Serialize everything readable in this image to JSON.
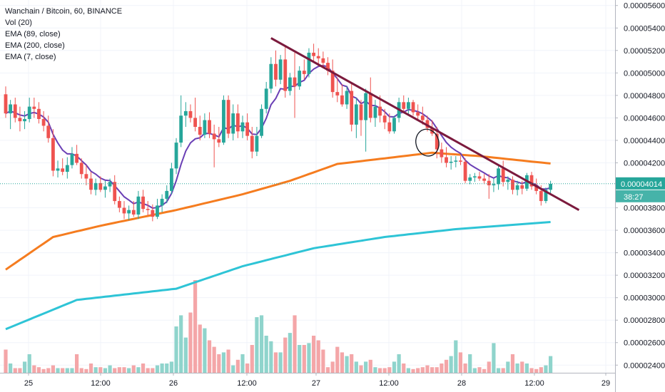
{
  "legend": {
    "title": "Wanchain / Bitcoin, 60, BINANCE",
    "vol": "Vol (20)",
    "ema1": "EMA (89, close)",
    "ema2": "EMA (200, close)",
    "ema3": "EMA (7, close)"
  },
  "colors": {
    "up": "#26a69a",
    "down": "#ef5350",
    "vol_up": "#8fd4cc",
    "vol_down": "#f4a6a8",
    "ema7": "#6a3fb5",
    "ema89": "#f57c1f",
    "ema200": "#2ec4d6",
    "trendline": "#7b1a3d",
    "last_price": "#26a69a"
  },
  "chart_data": {
    "type": "candlestick",
    "title": "Wanchain / Bitcoin, 60, BINANCE",
    "y_axis": {
      "ticks": [
        "0.00005600",
        "0.00005400",
        "0.00005200",
        "0.00005000",
        "0.00004800",
        "0.00004600",
        "0.00004400",
        "0.00004200",
        "0.00003800",
        "0.00003600",
        "0.00003400",
        "0.00003200",
        "0.00003000",
        "0.00002800",
        "0.00002600",
        "0.00002400"
      ],
      "range": [
        2.37e-05,
        5.63e-05
      ]
    },
    "x_axis": {
      "ticks": [
        "25",
        "12:00",
        "26",
        "12:00",
        "27",
        "12:00",
        "28",
        "12:00",
        "29"
      ]
    },
    "last_price": {
      "label": "0.00004014",
      "value": 4.014e-05,
      "countdown": "38:27"
    },
    "candles": [
      {
        "o": 4.81e-05,
        "h": 4.88e-05,
        "l": 4.6e-05,
        "c": 4.64e-05
      },
      {
        "o": 4.64e-05,
        "h": 4.76e-05,
        "l": 4.5e-05,
        "c": 4.72e-05
      },
      {
        "o": 4.72e-05,
        "h": 4.78e-05,
        "l": 4.56e-05,
        "c": 4.6e-05
      },
      {
        "o": 4.6e-05,
        "h": 4.7e-05,
        "l": 4.48e-05,
        "c": 4.57e-05
      },
      {
        "o": 4.57e-05,
        "h": 4.66e-05,
        "l": 4.5e-05,
        "c": 4.59e-05
      },
      {
        "o": 4.59e-05,
        "h": 4.78e-05,
        "l": 4.56e-05,
        "c": 4.7e-05
      },
      {
        "o": 4.7e-05,
        "h": 4.78e-05,
        "l": 4.6e-05,
        "c": 4.68e-05
      },
      {
        "o": 4.68e-05,
        "h": 4.74e-05,
        "l": 4.55e-05,
        "c": 4.59e-05
      },
      {
        "o": 4.59e-05,
        "h": 4.66e-05,
        "l": 4.48e-05,
        "c": 4.53e-05
      },
      {
        "o": 4.53e-05,
        "h": 4.62e-05,
        "l": 4.38e-05,
        "c": 4.42e-05
      },
      {
        "o": 4.42e-05,
        "h": 4.5e-05,
        "l": 4.08e-05,
        "c": 4.13e-05
      },
      {
        "o": 4.13e-05,
        "h": 4.22e-05,
        "l": 4.07e-05,
        "c": 4.15e-05
      },
      {
        "o": 4.15e-05,
        "h": 4.24e-05,
        "l": 4.09e-05,
        "c": 4.12e-05
      },
      {
        "o": 4.12e-05,
        "h": 4.25e-05,
        "l": 4.06e-05,
        "c": 4.18e-05
      },
      {
        "o": 4.18e-05,
        "h": 4.34e-05,
        "l": 4.15e-05,
        "c": 4.28e-05
      },
      {
        "o": 4.28e-05,
        "h": 4.36e-05,
        "l": 4.18e-05,
        "c": 4.2e-05
      },
      {
        "o": 4.2e-05,
        "h": 4.24e-05,
        "l": 4.06e-05,
        "c": 4.1e-05
      },
      {
        "o": 4.1e-05,
        "h": 4.18e-05,
        "l": 4e-05,
        "c": 4.06e-05
      },
      {
        "o": 4.06e-05,
        "h": 4.12e-05,
        "l": 3.92e-05,
        "c": 3.96e-05
      },
      {
        "o": 3.96e-05,
        "h": 4.06e-05,
        "l": 3.91e-05,
        "c": 4.02e-05
      },
      {
        "o": 4.02e-05,
        "h": 4.08e-05,
        "l": 3.94e-05,
        "c": 3.96e-05
      },
      {
        "o": 3.96e-05,
        "h": 4.04e-05,
        "l": 3.89e-05,
        "c": 3.99e-05
      },
      {
        "o": 3.99e-05,
        "h": 4.06e-05,
        "l": 3.94e-05,
        "c": 4.03e-05
      },
      {
        "o": 4.03e-05,
        "h": 4.09e-05,
        "l": 3.83e-05,
        "c": 3.86e-05
      },
      {
        "o": 3.86e-05,
        "h": 3.9e-05,
        "l": 3.76e-05,
        "c": 3.8e-05
      },
      {
        "o": 3.8e-05,
        "h": 3.86e-05,
        "l": 3.7e-05,
        "c": 3.75e-05
      },
      {
        "o": 3.75e-05,
        "h": 3.82e-05,
        "l": 3.69e-05,
        "c": 3.78e-05
      },
      {
        "o": 3.78e-05,
        "h": 3.86e-05,
        "l": 3.72e-05,
        "c": 3.74e-05
      },
      {
        "o": 3.74e-05,
        "h": 3.95e-05,
        "l": 3.7e-05,
        "c": 3.9e-05
      },
      {
        "o": 3.9e-05,
        "h": 3.96e-05,
        "l": 3.76e-05,
        "c": 3.79e-05
      },
      {
        "o": 3.79e-05,
        "h": 3.86e-05,
        "l": 3.73e-05,
        "c": 3.78e-05
      },
      {
        "o": 3.78e-05,
        "h": 3.83e-05,
        "l": 3.68e-05,
        "c": 3.72e-05
      },
      {
        "o": 3.72e-05,
        "h": 3.88e-05,
        "l": 3.7e-05,
        "c": 3.82e-05
      },
      {
        "o": 3.82e-05,
        "h": 3.92e-05,
        "l": 3.76e-05,
        "c": 3.88e-05
      },
      {
        "o": 3.88e-05,
        "h": 4e-05,
        "l": 3.84e-05,
        "c": 3.95e-05
      },
      {
        "o": 3.95e-05,
        "h": 4.2e-05,
        "l": 3.92e-05,
        "c": 4.15e-05
      },
      {
        "o": 4.15e-05,
        "h": 4.42e-05,
        "l": 4.1e-05,
        "c": 4.38e-05
      },
      {
        "o": 4.38e-05,
        "h": 4.8e-05,
        "l": 4.34e-05,
        "c": 4.62e-05
      },
      {
        "o": 4.62e-05,
        "h": 4.74e-05,
        "l": 4.52e-05,
        "c": 4.66e-05
      },
      {
        "o": 4.66e-05,
        "h": 4.72e-05,
        "l": 4.56e-05,
        "c": 4.6e-05
      },
      {
        "o": 4.6e-05,
        "h": 4.78e-05,
        "l": 4.48e-05,
        "c": 4.52e-05
      },
      {
        "o": 4.52e-05,
        "h": 4.62e-05,
        "l": 4.4e-05,
        "c": 4.45e-05
      },
      {
        "o": 4.45e-05,
        "h": 4.64e-05,
        "l": 4.42e-05,
        "c": 4.58e-05
      },
      {
        "o": 4.58e-05,
        "h": 4.65e-05,
        "l": 4.42e-05,
        "c": 4.46e-05
      },
      {
        "o": 4.46e-05,
        "h": 4.54e-05,
        "l": 4.16e-05,
        "c": 4.41e-05
      },
      {
        "o": 4.41e-05,
        "h": 4.52e-05,
        "l": 4.34e-05,
        "c": 4.38e-05
      },
      {
        "o": 4.38e-05,
        "h": 4.8e-05,
        "l": 4.36e-05,
        "c": 4.76e-05
      },
      {
        "o": 4.76e-05,
        "h": 4.8e-05,
        "l": 4.42e-05,
        "c": 4.46e-05
      },
      {
        "o": 4.46e-05,
        "h": 4.72e-05,
        "l": 4.4e-05,
        "c": 4.64e-05
      },
      {
        "o": 4.64e-05,
        "h": 4.72e-05,
        "l": 4.42e-05,
        "c": 4.48e-05
      },
      {
        "o": 4.48e-05,
        "h": 4.62e-05,
        "l": 4.42e-05,
        "c": 4.56e-05
      },
      {
        "o": 4.56e-05,
        "h": 4.64e-05,
        "l": 4.4e-05,
        "c": 4.44e-05
      },
      {
        "o": 4.44e-05,
        "h": 4.52e-05,
        "l": 4.24e-05,
        "c": 4.3e-05
      },
      {
        "o": 4.3e-05,
        "h": 4.52e-05,
        "l": 4.26e-05,
        "c": 4.44e-05
      },
      {
        "o": 4.44e-05,
        "h": 4.72e-05,
        "l": 4.42e-05,
        "c": 4.68e-05
      },
      {
        "o": 4.68e-05,
        "h": 4.92e-05,
        "l": 4.64e-05,
        "c": 4.86e-05
      },
      {
        "o": 4.86e-05,
        "h": 5.14e-05,
        "l": 4.82e-05,
        "c": 5.08e-05
      },
      {
        "o": 5.08e-05,
        "h": 5.2e-05,
        "l": 4.88e-05,
        "c": 4.94e-05
      },
      {
        "o": 4.94e-05,
        "h": 5.16e-05,
        "l": 4.9e-05,
        "c": 5.12e-05
      },
      {
        "o": 5.12e-05,
        "h": 5.24e-05,
        "l": 4.78e-05,
        "c": 4.84e-05
      },
      {
        "o": 4.84e-05,
        "h": 5e-05,
        "l": 4.8e-05,
        "c": 4.96e-05
      },
      {
        "o": 4.96e-05,
        "h": 5.18e-05,
        "l": 4.6e-05,
        "c": 4.88e-05
      },
      {
        "o": 4.88e-05,
        "h": 5.06e-05,
        "l": 4.85e-05,
        "c": 5.02e-05
      },
      {
        "o": 5.02e-05,
        "h": 5.12e-05,
        "l": 4.94e-05,
        "c": 4.99e-05
      },
      {
        "o": 4.99e-05,
        "h": 5.22e-05,
        "l": 4.96e-05,
        "c": 5.18e-05
      },
      {
        "o": 5.18e-05,
        "h": 5.26e-05,
        "l": 5.1e-05,
        "c": 5.15e-05
      },
      {
        "o": 5.15e-05,
        "h": 5.22e-05,
        "l": 5.08e-05,
        "c": 5.13e-05
      },
      {
        "o": 5.13e-05,
        "h": 5.19e-05,
        "l": 5.04e-05,
        "c": 5.09e-05
      },
      {
        "o": 5.09e-05,
        "h": 5.14e-05,
        "l": 4.98e-05,
        "c": 5.02e-05
      },
      {
        "o": 5.02e-05,
        "h": 5.12e-05,
        "l": 4.78e-05,
        "c": 4.83e-05
      },
      {
        "o": 4.83e-05,
        "h": 4.96e-05,
        "l": 4.74e-05,
        "c": 4.8e-05
      },
      {
        "o": 4.8e-05,
        "h": 4.9e-05,
        "l": 4.7e-05,
        "c": 4.72e-05
      },
      {
        "o": 4.72e-05,
        "h": 4.88e-05,
        "l": 4.68e-05,
        "c": 4.84e-05
      },
      {
        "o": 4.84e-05,
        "h": 4.9e-05,
        "l": 4.48e-05,
        "c": 4.54e-05
      },
      {
        "o": 4.54e-05,
        "h": 4.78e-05,
        "l": 4.42e-05,
        "c": 4.72e-05
      },
      {
        "o": 4.72e-05,
        "h": 4.76e-05,
        "l": 4.44e-05,
        "c": 4.58e-05
      },
      {
        "o": 4.58e-05,
        "h": 4.86e-05,
        "l": 4.3e-05,
        "c": 4.82e-05
      },
      {
        "o": 4.82e-05,
        "h": 4.96e-05,
        "l": 4.56e-05,
        "c": 4.6e-05
      },
      {
        "o": 4.6e-05,
        "h": 4.76e-05,
        "l": 4.52e-05,
        "c": 4.7e-05
      },
      {
        "o": 4.7e-05,
        "h": 4.8e-05,
        "l": 4.56e-05,
        "c": 4.62e-05
      },
      {
        "o": 4.62e-05,
        "h": 4.68e-05,
        "l": 4.5e-05,
        "c": 4.56e-05
      },
      {
        "o": 4.56e-05,
        "h": 4.64e-05,
        "l": 4.46e-05,
        "c": 4.48e-05
      },
      {
        "o": 4.48e-05,
        "h": 4.62e-05,
        "l": 4.46e-05,
        "c": 4.6e-05
      },
      {
        "o": 4.6e-05,
        "h": 4.78e-05,
        "l": 4.56e-05,
        "c": 4.74e-05
      },
      {
        "o": 4.74e-05,
        "h": 4.8e-05,
        "l": 4.64e-05,
        "c": 4.68e-05
      },
      {
        "o": 4.68e-05,
        "h": 4.78e-05,
        "l": 4.62e-05,
        "c": 4.74e-05
      },
      {
        "o": 4.74e-05,
        "h": 4.76e-05,
        "l": 4.62e-05,
        "c": 4.65e-05
      },
      {
        "o": 4.65e-05,
        "h": 4.72e-05,
        "l": 4.58e-05,
        "c": 4.62e-05
      },
      {
        "o": 4.62e-05,
        "h": 4.7e-05,
        "l": 4.54e-05,
        "c": 4.58e-05
      },
      {
        "o": 4.58e-05,
        "h": 4.62e-05,
        "l": 4.48e-05,
        "c": 4.51e-05
      },
      {
        "o": 4.51e-05,
        "h": 4.58e-05,
        "l": 4.44e-05,
        "c": 4.46e-05
      },
      {
        "o": 4.46e-05,
        "h": 4.52e-05,
        "l": 4.24e-05,
        "c": 4.32e-05
      },
      {
        "o": 4.32e-05,
        "h": 4.38e-05,
        "l": 4.2e-05,
        "c": 4.25e-05
      },
      {
        "o": 4.25e-05,
        "h": 4.34e-05,
        "l": 4.16e-05,
        "c": 4.2e-05
      },
      {
        "o": 4.2e-05,
        "h": 4.26e-05,
        "l": 4.14e-05,
        "c": 4.21e-05
      },
      {
        "o": 4.21e-05,
        "h": 4.26e-05,
        "l": 4.16e-05,
        "c": 4.22e-05
      },
      {
        "o": 4.22e-05,
        "h": 4.26e-05,
        "l": 4.18e-05,
        "c": 4.21e-05
      },
      {
        "o": 4.21e-05,
        "h": 4.24e-05,
        "l": 4.02e-05,
        "c": 4.04e-05
      },
      {
        "o": 4.04e-05,
        "h": 4.1e-05,
        "l": 4.01e-05,
        "c": 4.07e-05
      },
      {
        "o": 4.07e-05,
        "h": 4.11e-05,
        "l": 4.03e-05,
        "c": 4.08e-05
      },
      {
        "o": 4.08e-05,
        "h": 4.12e-05,
        "l": 4.04e-05,
        "c": 4.06e-05
      },
      {
        "o": 4.06e-05,
        "h": 4.1e-05,
        "l": 4.01e-05,
        "c": 4.04e-05
      },
      {
        "o": 4.04e-05,
        "h": 4.1e-05,
        "l": 3.88e-05,
        "c": 4e-05
      },
      {
        "o": 4e-05,
        "h": 4.06e-05,
        "l": 3.94e-05,
        "c": 4.01e-05
      },
      {
        "o": 4.01e-05,
        "h": 4.18e-05,
        "l": 3.96e-05,
        "c": 4.15e-05
      },
      {
        "o": 4.15e-05,
        "h": 4.22e-05,
        "l": 3.99e-05,
        "c": 4.03e-05
      },
      {
        "o": 4.03e-05,
        "h": 4.08e-05,
        "l": 3.96e-05,
        "c": 4.05e-05
      },
      {
        "o": 4.05e-05,
        "h": 4.08e-05,
        "l": 3.92e-05,
        "c": 3.96e-05
      },
      {
        "o": 3.96e-05,
        "h": 4.04e-05,
        "l": 3.91e-05,
        "c": 4e-05
      },
      {
        "o": 4e-05,
        "h": 4.04e-05,
        "l": 3.92e-05,
        "c": 3.97e-05
      },
      {
        "o": 3.97e-05,
        "h": 4.11e-05,
        "l": 3.95e-05,
        "c": 4.09e-05
      },
      {
        "o": 4.09e-05,
        "h": 4.12e-05,
        "l": 3.96e-05,
        "c": 3.99e-05
      },
      {
        "o": 3.99e-05,
        "h": 4.06e-05,
        "l": 3.92e-05,
        "c": 3.95e-05
      },
      {
        "o": 3.95e-05,
        "h": 4e-05,
        "l": 3.82e-05,
        "c": 3.86e-05
      },
      {
        "o": 3.86e-05,
        "h": 3.98e-05,
        "l": 3.84e-05,
        "c": 3.96e-05
      },
      {
        "o": 3.96e-05,
        "h": 4.04e-05,
        "l": 3.93e-05,
        "c": 4.014e-05
      }
    ],
    "volume_rel": [
      0.25,
      0.1,
      0.05,
      0.05,
      0.12,
      0.2,
      0.08,
      0.06,
      0.04,
      0.05,
      0.08,
      0.05,
      0.05,
      0.05,
      0.05,
      0.2,
      0.05,
      0.04,
      0.1,
      0.06,
      0.06,
      0.05,
      0.08,
      0.05,
      0.06,
      0.06,
      0.05,
      0.08,
      0.06,
      0.1,
      0.05,
      0.05,
      0.08,
      0.1,
      0.1,
      0.12,
      0.5,
      0.62,
      0.38,
      0.65,
      1.0,
      0.52,
      0.48,
      0.35,
      0.28,
      0.2,
      0.22,
      0.25,
      0.08,
      0.14,
      0.2,
      0.1,
      0.3,
      0.6,
      0.62,
      0.4,
      0.34,
      0.22,
      0.22,
      0.38,
      0.43,
      0.62,
      0.3,
      0.3,
      0.32,
      0.4,
      0.35,
      0.25,
      0.06,
      0.12,
      0.28,
      0.22,
      0.18,
      0.2,
      0.12,
      0.08,
      0.12,
      0.14,
      0.06,
      0.05,
      0.05,
      0.06,
      0.12,
      0.2,
      0.1,
      0.05,
      0.04,
      0.05,
      0.06,
      0.08,
      0.06,
      0.06,
      0.1,
      0.14,
      0.18,
      0.35,
      0.22,
      0.1,
      0.2,
      0.05,
      0.06,
      0.04,
      0.12,
      0.32,
      0.05,
      0.05,
      0.12,
      0.2,
      0.1,
      0.12,
      0.1,
      0.05,
      0.04,
      0.06,
      0.08,
      0.18,
      0.05,
      0.05
    ],
    "ema7": {
      "name": "EMA (7, close)"
    },
    "ema89": {
      "name": "EMA (89, close)",
      "start": 3.25e-05,
      "points": [
        [
          0,
          3.25e-05
        ],
        [
          10,
          3.54e-05
        ],
        [
          20,
          3.64e-05
        ],
        [
          36,
          3.78e-05
        ],
        [
          50,
          3.92e-05
        ],
        [
          60,
          4.04e-05
        ],
        [
          70,
          4.19e-05
        ],
        [
          80,
          4.24e-05
        ],
        [
          90,
          4.29e-05
        ],
        [
          100,
          4.26e-05
        ],
        [
          117,
          4.185e-05
        ]
      ]
    },
    "ema200": {
      "name": "EMA (200, close)",
      "points": [
        [
          0,
          2.72e-05
        ],
        [
          15,
          2.98e-05
        ],
        [
          36,
          3.08e-05
        ],
        [
          50,
          3.28e-05
        ],
        [
          65,
          3.44e-05
        ],
        [
          80,
          3.54e-05
        ],
        [
          95,
          3.61e-05
        ],
        [
          117,
          3.68e-05
        ]
      ]
    },
    "trendline": {
      "start": {
        "i": 56,
        "v": 5.31e-05
      },
      "end": {
        "i": 121,
        "v": 3.78e-05
      }
    },
    "annotation": {
      "type": "ellipse",
      "at_index": 89,
      "v": 4.38e-05
    }
  }
}
